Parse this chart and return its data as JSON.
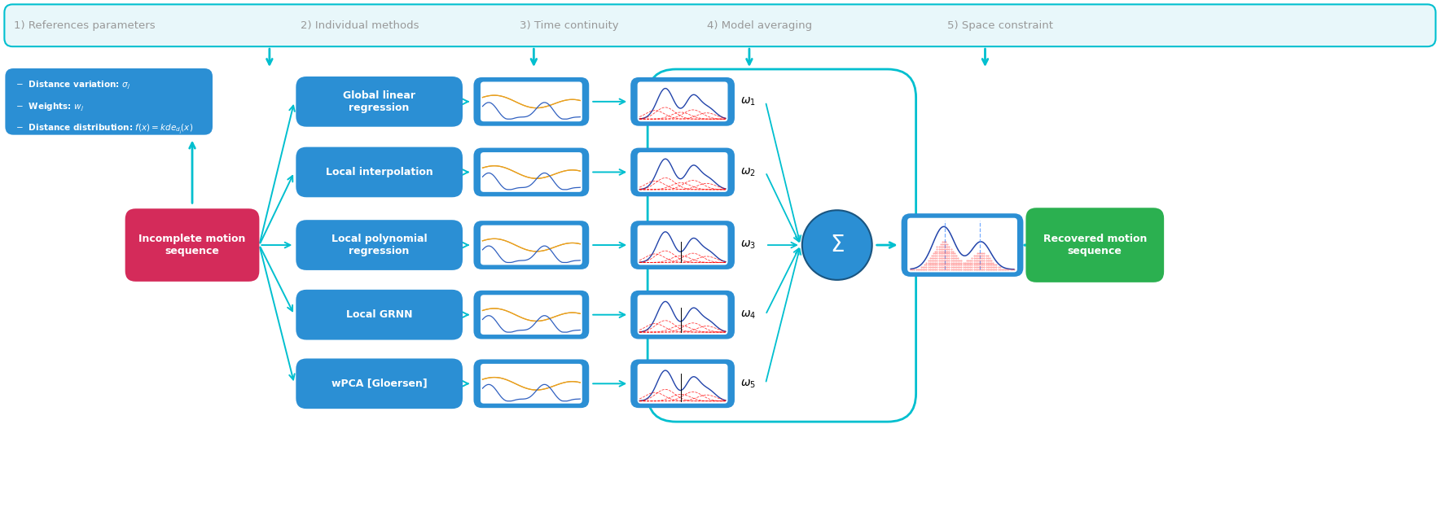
{
  "bg_color": "#ffffff",
  "cyan_arrow": "#00BFCF",
  "blue_box": "#2B8FD4",
  "red_box": "#D42B5A",
  "green_box": "#2BB050",
  "text_white": "#ffffff",
  "title_color": "#999999",
  "step_labels": [
    "1) References parameters",
    "2) Individual methods",
    "3) Time continuity",
    "4) Model averaging",
    "5) Space constraint"
  ],
  "method_labels": [
    "Global linear\nregression",
    "Local interpolation",
    "Local polynomial\nregression",
    "Local GRNN",
    "wPCA [Gloersen]"
  ],
  "input_label": "Incomplete motion\nsequence",
  "output_label": "Recovered motion\nsequence"
}
